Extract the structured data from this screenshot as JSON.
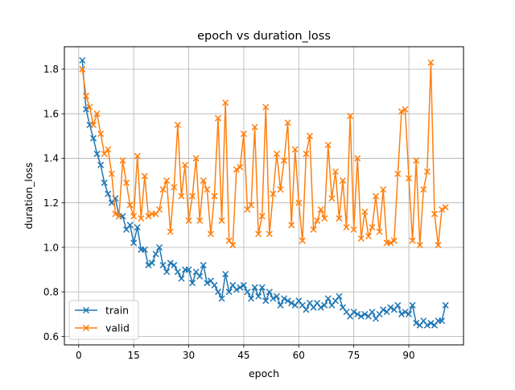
{
  "chart_data": {
    "type": "line",
    "title": "epoch vs duration_loss",
    "xlabel": "epoch",
    "ylabel": "duration_loss",
    "xlim": [
      -3.9,
      104.9
    ],
    "ylim": [
      0.562,
      1.901
    ],
    "xticks": [
      0,
      15,
      30,
      45,
      60,
      75,
      90
    ],
    "xtick_labels": [
      "0",
      "15",
      "30",
      "45",
      "60",
      "75",
      "90"
    ],
    "yticks": [
      0.6,
      0.8,
      1.0,
      1.2,
      1.4,
      1.6,
      1.8
    ],
    "ytick_labels": [
      "0.6",
      "0.8",
      "1.0",
      "1.2",
      "1.4",
      "1.6",
      "1.8"
    ],
    "grid": true,
    "legend_position": "bottom-left",
    "x": [
      1,
      2,
      3,
      4,
      5,
      6,
      7,
      8,
      9,
      10,
      11,
      12,
      13,
      14,
      15,
      16,
      17,
      18,
      19,
      20,
      21,
      22,
      23,
      24,
      25,
      26,
      27,
      28,
      29,
      30,
      31,
      32,
      33,
      34,
      35,
      36,
      37,
      38,
      39,
      40,
      41,
      42,
      43,
      44,
      45,
      46,
      47,
      48,
      49,
      50,
      51,
      52,
      53,
      54,
      55,
      56,
      57,
      58,
      59,
      60,
      61,
      62,
      63,
      64,
      65,
      66,
      67,
      68,
      69,
      70,
      71,
      72,
      73,
      74,
      75,
      76,
      77,
      78,
      79,
      80,
      81,
      82,
      83,
      84,
      85,
      86,
      87,
      88,
      89,
      90,
      91,
      92,
      93,
      94,
      95,
      96,
      97,
      98,
      99,
      100
    ],
    "series": [
      {
        "name": "train",
        "color": "#1f77b4",
        "marker": "x",
        "values": [
          1.84,
          1.62,
          1.55,
          1.49,
          1.42,
          1.37,
          1.29,
          1.24,
          1.2,
          1.22,
          1.14,
          1.14,
          1.08,
          1.1,
          1.02,
          1.09,
          0.99,
          0.99,
          0.92,
          0.93,
          0.97,
          1.0,
          0.92,
          0.89,
          0.93,
          0.92,
          0.89,
          0.86,
          0.9,
          0.9,
          0.84,
          0.89,
          0.87,
          0.92,
          0.84,
          0.85,
          0.83,
          0.8,
          0.77,
          0.88,
          0.8,
          0.83,
          0.81,
          0.82,
          0.83,
          0.8,
          0.77,
          0.82,
          0.78,
          0.82,
          0.76,
          0.8,
          0.77,
          0.78,
          0.74,
          0.77,
          0.76,
          0.75,
          0.74,
          0.76,
          0.74,
          0.72,
          0.75,
          0.73,
          0.75,
          0.73,
          0.74,
          0.77,
          0.74,
          0.76,
          0.78,
          0.73,
          0.71,
          0.69,
          0.71,
          0.7,
          0.69,
          0.7,
          0.69,
          0.71,
          0.68,
          0.7,
          0.72,
          0.71,
          0.73,
          0.72,
          0.74,
          0.7,
          0.71,
          0.7,
          0.74,
          0.66,
          0.65,
          0.67,
          0.65,
          0.66,
          0.65,
          0.67,
          0.67,
          0.74
        ]
      },
      {
        "name": "valid",
        "color": "#ff7f0e",
        "marker": "x",
        "values": [
          1.8,
          1.68,
          1.63,
          1.55,
          1.6,
          1.51,
          1.42,
          1.44,
          1.33,
          1.15,
          1.14,
          1.39,
          1.29,
          1.19,
          1.14,
          1.41,
          1.13,
          1.32,
          1.14,
          1.15,
          1.15,
          1.17,
          1.26,
          1.3,
          1.07,
          1.27,
          1.55,
          1.23,
          1.37,
          1.12,
          1.23,
          1.4,
          1.12,
          1.3,
          1.26,
          1.06,
          1.23,
          1.58,
          1.12,
          1.65,
          1.03,
          1.01,
          1.35,
          1.36,
          1.51,
          1.17,
          1.19,
          1.54,
          1.06,
          1.14,
          1.63,
          1.06,
          1.24,
          1.42,
          1.26,
          1.39,
          1.56,
          1.1,
          1.44,
          1.2,
          1.03,
          1.42,
          1.5,
          1.08,
          1.12,
          1.17,
          1.13,
          1.46,
          1.22,
          1.34,
          1.13,
          1.3,
          1.09,
          1.59,
          1.08,
          1.4,
          1.04,
          1.16,
          1.05,
          1.09,
          1.23,
          1.07,
          1.26,
          1.02,
          1.02,
          1.03,
          1.33,
          1.61,
          1.62,
          1.31,
          1.03,
          1.39,
          1.01,
          1.26,
          1.34,
          1.83,
          1.15,
          1.01,
          1.17,
          1.18
        ]
      }
    ]
  }
}
